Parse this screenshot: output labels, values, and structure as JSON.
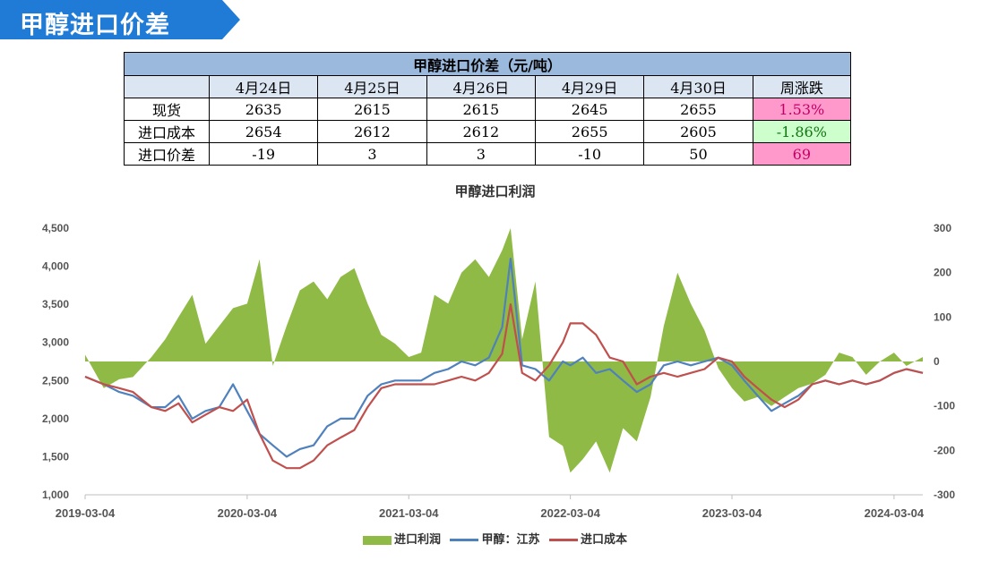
{
  "header": {
    "title": "甲醇进口价差"
  },
  "table": {
    "title": "甲醇进口价差（元/吨）",
    "columns": [
      "4月24日",
      "4月25日",
      "4月26日",
      "4月29日",
      "4月30日",
      "周涨跌"
    ],
    "rows": [
      {
        "label": "现货",
        "values": [
          "2635",
          "2615",
          "2615",
          "2645",
          "2655"
        ],
        "change": "1.53%",
        "change_status": "up"
      },
      {
        "label": "进口成本",
        "values": [
          "2654",
          "2612",
          "2612",
          "2655",
          "2605"
        ],
        "change": "-1.86%",
        "change_status": "down"
      },
      {
        "label": "进口价差",
        "values": [
          "-19",
          "3",
          "3",
          "-10",
          "50"
        ],
        "change": "69",
        "change_status": "up"
      }
    ]
  },
  "colors": {
    "profit": "#8fba45",
    "spot": "#4f81bd",
    "cost": "#c0504d",
    "up_bg": "#ff99cc",
    "down_bg": "#ccffcc",
    "table_header": "#9bb9dc"
  },
  "chart_data": {
    "type": "line",
    "title": "甲醇进口利润",
    "x_tick_labels": [
      "2019-03-04",
      "2020-03-04",
      "2021-03-04",
      "2022-03-04",
      "2023-03-04",
      "2024-03-04"
    ],
    "y_left": {
      "range": [
        1000,
        4500
      ],
      "ticks": [
        "1,000",
        "1,500",
        "2,000",
        "2,500",
        "3,000",
        "3,500",
        "4,000",
        "4,500"
      ]
    },
    "y_right": {
      "range": [
        -300,
        300
      ],
      "ticks": [
        "-300",
        "-200",
        "-100",
        "0",
        "100",
        "200",
        "300"
      ]
    },
    "x_range": [
      "2019-03-04",
      "2024-05-08"
    ],
    "legend_position": "bottom",
    "series": [
      {
        "name": "进口利润",
        "kind": "area",
        "axis": "right",
        "dates": [
          "2019-03-04",
          "2019-04-15",
          "2019-05-20",
          "2019-06-20",
          "2019-08-01",
          "2019-09-01",
          "2019-10-01",
          "2019-11-01",
          "2019-12-01",
          "2020-01-01",
          "2020-02-01",
          "2020-03-04",
          "2020-04-01",
          "2020-05-01",
          "2020-06-01",
          "2020-07-01",
          "2020-08-01",
          "2020-09-01",
          "2020-10-01",
          "2020-11-01",
          "2020-12-01",
          "2021-01-01",
          "2021-02-01",
          "2021-03-04",
          "2021-04-01",
          "2021-05-01",
          "2021-06-01",
          "2021-07-01",
          "2021-08-01",
          "2021-09-01",
          "2021-10-01",
          "2021-10-20",
          "2021-11-15",
          "2021-12-15",
          "2022-01-15",
          "2022-02-15",
          "2022-03-04",
          "2022-04-01",
          "2022-05-01",
          "2022-06-01",
          "2022-07-01",
          "2022-08-01",
          "2022-09-01",
          "2022-10-01",
          "2022-11-01",
          "2022-12-01",
          "2023-01-01",
          "2023-02-01",
          "2023-03-04",
          "2023-04-01",
          "2023-05-01",
          "2023-06-01",
          "2023-07-01",
          "2023-08-01",
          "2023-09-01",
          "2023-10-01",
          "2023-11-01",
          "2023-12-01",
          "2024-01-01",
          "2024-02-01",
          "2024-03-04",
          "2024-04-01",
          "2024-05-08"
        ],
        "values": [
          15,
          -60,
          -40,
          -35,
          10,
          50,
          100,
          150,
          40,
          80,
          120,
          130,
          230,
          -10,
          80,
          160,
          180,
          140,
          190,
          210,
          130,
          60,
          40,
          10,
          20,
          150,
          130,
          200,
          230,
          190,
          250,
          300,
          50,
          180,
          -170,
          -190,
          -250,
          -220,
          -180,
          -250,
          -150,
          -180,
          -80,
          80,
          200,
          130,
          70,
          -15,
          -60,
          -90,
          -80,
          -100,
          -80,
          -60,
          -50,
          -30,
          20,
          10,
          -30,
          0,
          20,
          -10,
          10
        ]
      },
      {
        "name": "甲醇：江苏",
        "kind": "line",
        "axis": "left",
        "dates": [
          "2019-03-04",
          "2019-04-15",
          "2019-05-20",
          "2019-06-20",
          "2019-08-01",
          "2019-09-01",
          "2019-10-01",
          "2019-11-01",
          "2019-12-01",
          "2020-01-01",
          "2020-02-01",
          "2020-03-04",
          "2020-04-01",
          "2020-05-01",
          "2020-06-01",
          "2020-07-01",
          "2020-08-01",
          "2020-09-01",
          "2020-10-01",
          "2020-11-01",
          "2020-12-01",
          "2021-01-01",
          "2021-02-01",
          "2021-03-04",
          "2021-04-01",
          "2021-05-01",
          "2021-06-01",
          "2021-07-01",
          "2021-08-01",
          "2021-09-01",
          "2021-10-01",
          "2021-10-20",
          "2021-11-15",
          "2021-12-15",
          "2022-01-15",
          "2022-02-15",
          "2022-03-04",
          "2022-04-01",
          "2022-05-01",
          "2022-06-01",
          "2022-07-01",
          "2022-08-01",
          "2022-09-01",
          "2022-10-01",
          "2022-11-01",
          "2022-12-01",
          "2023-01-01",
          "2023-02-01",
          "2023-03-04",
          "2023-04-01",
          "2023-05-01",
          "2023-06-01",
          "2023-07-01",
          "2023-08-01",
          "2023-09-01",
          "2023-10-01",
          "2023-11-01",
          "2023-12-01",
          "2024-01-01",
          "2024-02-01",
          "2024-03-04",
          "2024-04-01",
          "2024-05-08"
        ],
        "values": [
          2550,
          2450,
          2350,
          2300,
          2150,
          2150,
          2300,
          2000,
          2100,
          2150,
          2450,
          2100,
          1800,
          1650,
          1500,
          1600,
          1650,
          1900,
          2000,
          2000,
          2300,
          2450,
          2500,
          2500,
          2500,
          2600,
          2650,
          2750,
          2700,
          2800,
          3200,
          4100,
          2700,
          2650,
          2500,
          2750,
          2700,
          2800,
          2600,
          2650,
          2500,
          2350,
          2450,
          2700,
          2750,
          2700,
          2750,
          2800,
          2700,
          2500,
          2300,
          2100,
          2200,
          2300,
          2450,
          2500,
          2450,
          2500,
          2450,
          2500,
          2600,
          2650,
          2600
        ]
      },
      {
        "name": "进口成本",
        "kind": "line",
        "axis": "left",
        "dates": [
          "2019-03-04",
          "2019-04-15",
          "2019-05-20",
          "2019-06-20",
          "2019-08-01",
          "2019-09-01",
          "2019-10-01",
          "2019-11-01",
          "2019-12-01",
          "2020-01-01",
          "2020-02-01",
          "2020-03-04",
          "2020-04-01",
          "2020-05-01",
          "2020-06-01",
          "2020-07-01",
          "2020-08-01",
          "2020-09-01",
          "2020-10-01",
          "2020-11-01",
          "2020-12-01",
          "2021-01-01",
          "2021-02-01",
          "2021-03-04",
          "2021-04-01",
          "2021-05-01",
          "2021-06-01",
          "2021-07-01",
          "2021-08-01",
          "2021-09-01",
          "2021-10-01",
          "2021-10-20",
          "2021-11-15",
          "2021-12-15",
          "2022-01-15",
          "2022-02-15",
          "2022-03-04",
          "2022-04-01",
          "2022-05-01",
          "2022-06-01",
          "2022-07-01",
          "2022-08-01",
          "2022-09-01",
          "2022-10-01",
          "2022-11-01",
          "2022-12-01",
          "2023-01-01",
          "2023-02-01",
          "2023-03-04",
          "2023-04-01",
          "2023-05-01",
          "2023-06-01",
          "2023-07-01",
          "2023-08-01",
          "2023-09-01",
          "2023-10-01",
          "2023-11-01",
          "2023-12-01",
          "2024-01-01",
          "2024-02-01",
          "2024-03-04",
          "2024-04-01",
          "2024-05-08"
        ],
        "values": [
          2550,
          2450,
          2400,
          2350,
          2150,
          2100,
          2200,
          1950,
          2050,
          2150,
          2100,
          2250,
          1800,
          1450,
          1350,
          1350,
          1450,
          1650,
          1750,
          1850,
          2150,
          2400,
          2450,
          2450,
          2450,
          2450,
          2500,
          2550,
          2500,
          2600,
          2850,
          3500,
          2600,
          2500,
          2700,
          3000,
          3250,
          3250,
          3100,
          2800,
          2750,
          2450,
          2550,
          2600,
          2550,
          2600,
          2650,
          2800,
          2750,
          2550,
          2400,
          2250,
          2150,
          2250,
          2450,
          2500,
          2450,
          2500,
          2450,
          2500,
          2600,
          2650,
          2600
        ]
      }
    ]
  }
}
